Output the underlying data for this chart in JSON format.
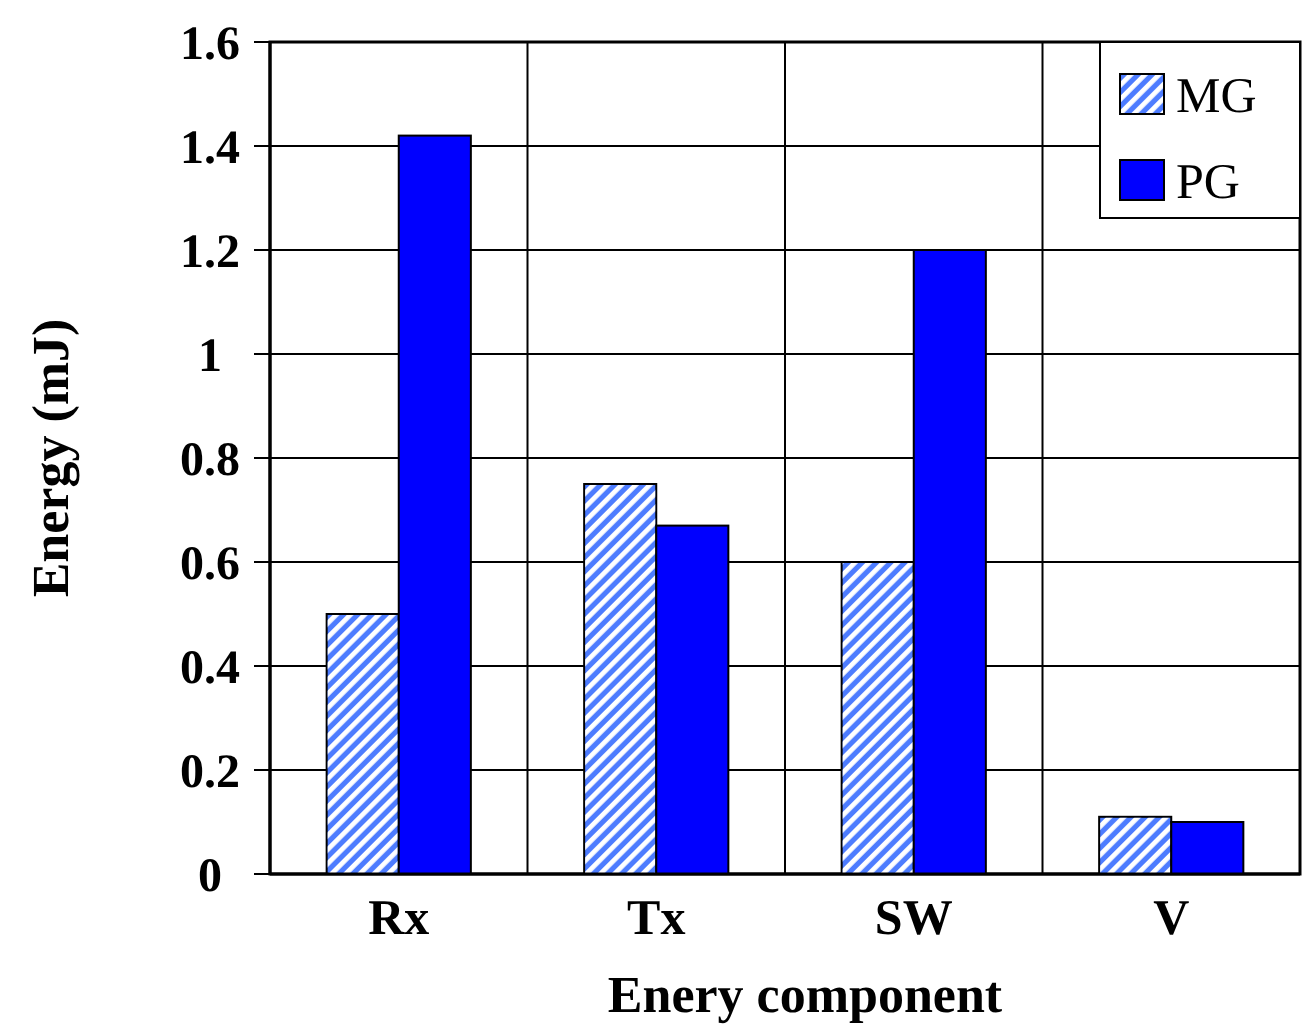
{
  "chart_data": {
    "type": "bar",
    "xlabel": "Enery component",
    "ylabel": "Energy (mJ)",
    "categories": [
      "Rx",
      "Tx",
      "SW",
      "V"
    ],
    "series": [
      {
        "name": "MG",
        "color": "#4d7cff",
        "values": [
          0.5,
          0.75,
          0.6,
          0.11
        ]
      },
      {
        "name": "PG",
        "color": "#0000ff",
        "values": [
          1.42,
          0.67,
          1.2,
          0.1
        ]
      }
    ],
    "ylim": [
      0,
      1.6
    ],
    "yticks": [
      0,
      0.2,
      0.4,
      0.6,
      0.8,
      1,
      1.2,
      1.4,
      1.6
    ],
    "grid": true,
    "legend": "top right"
  }
}
